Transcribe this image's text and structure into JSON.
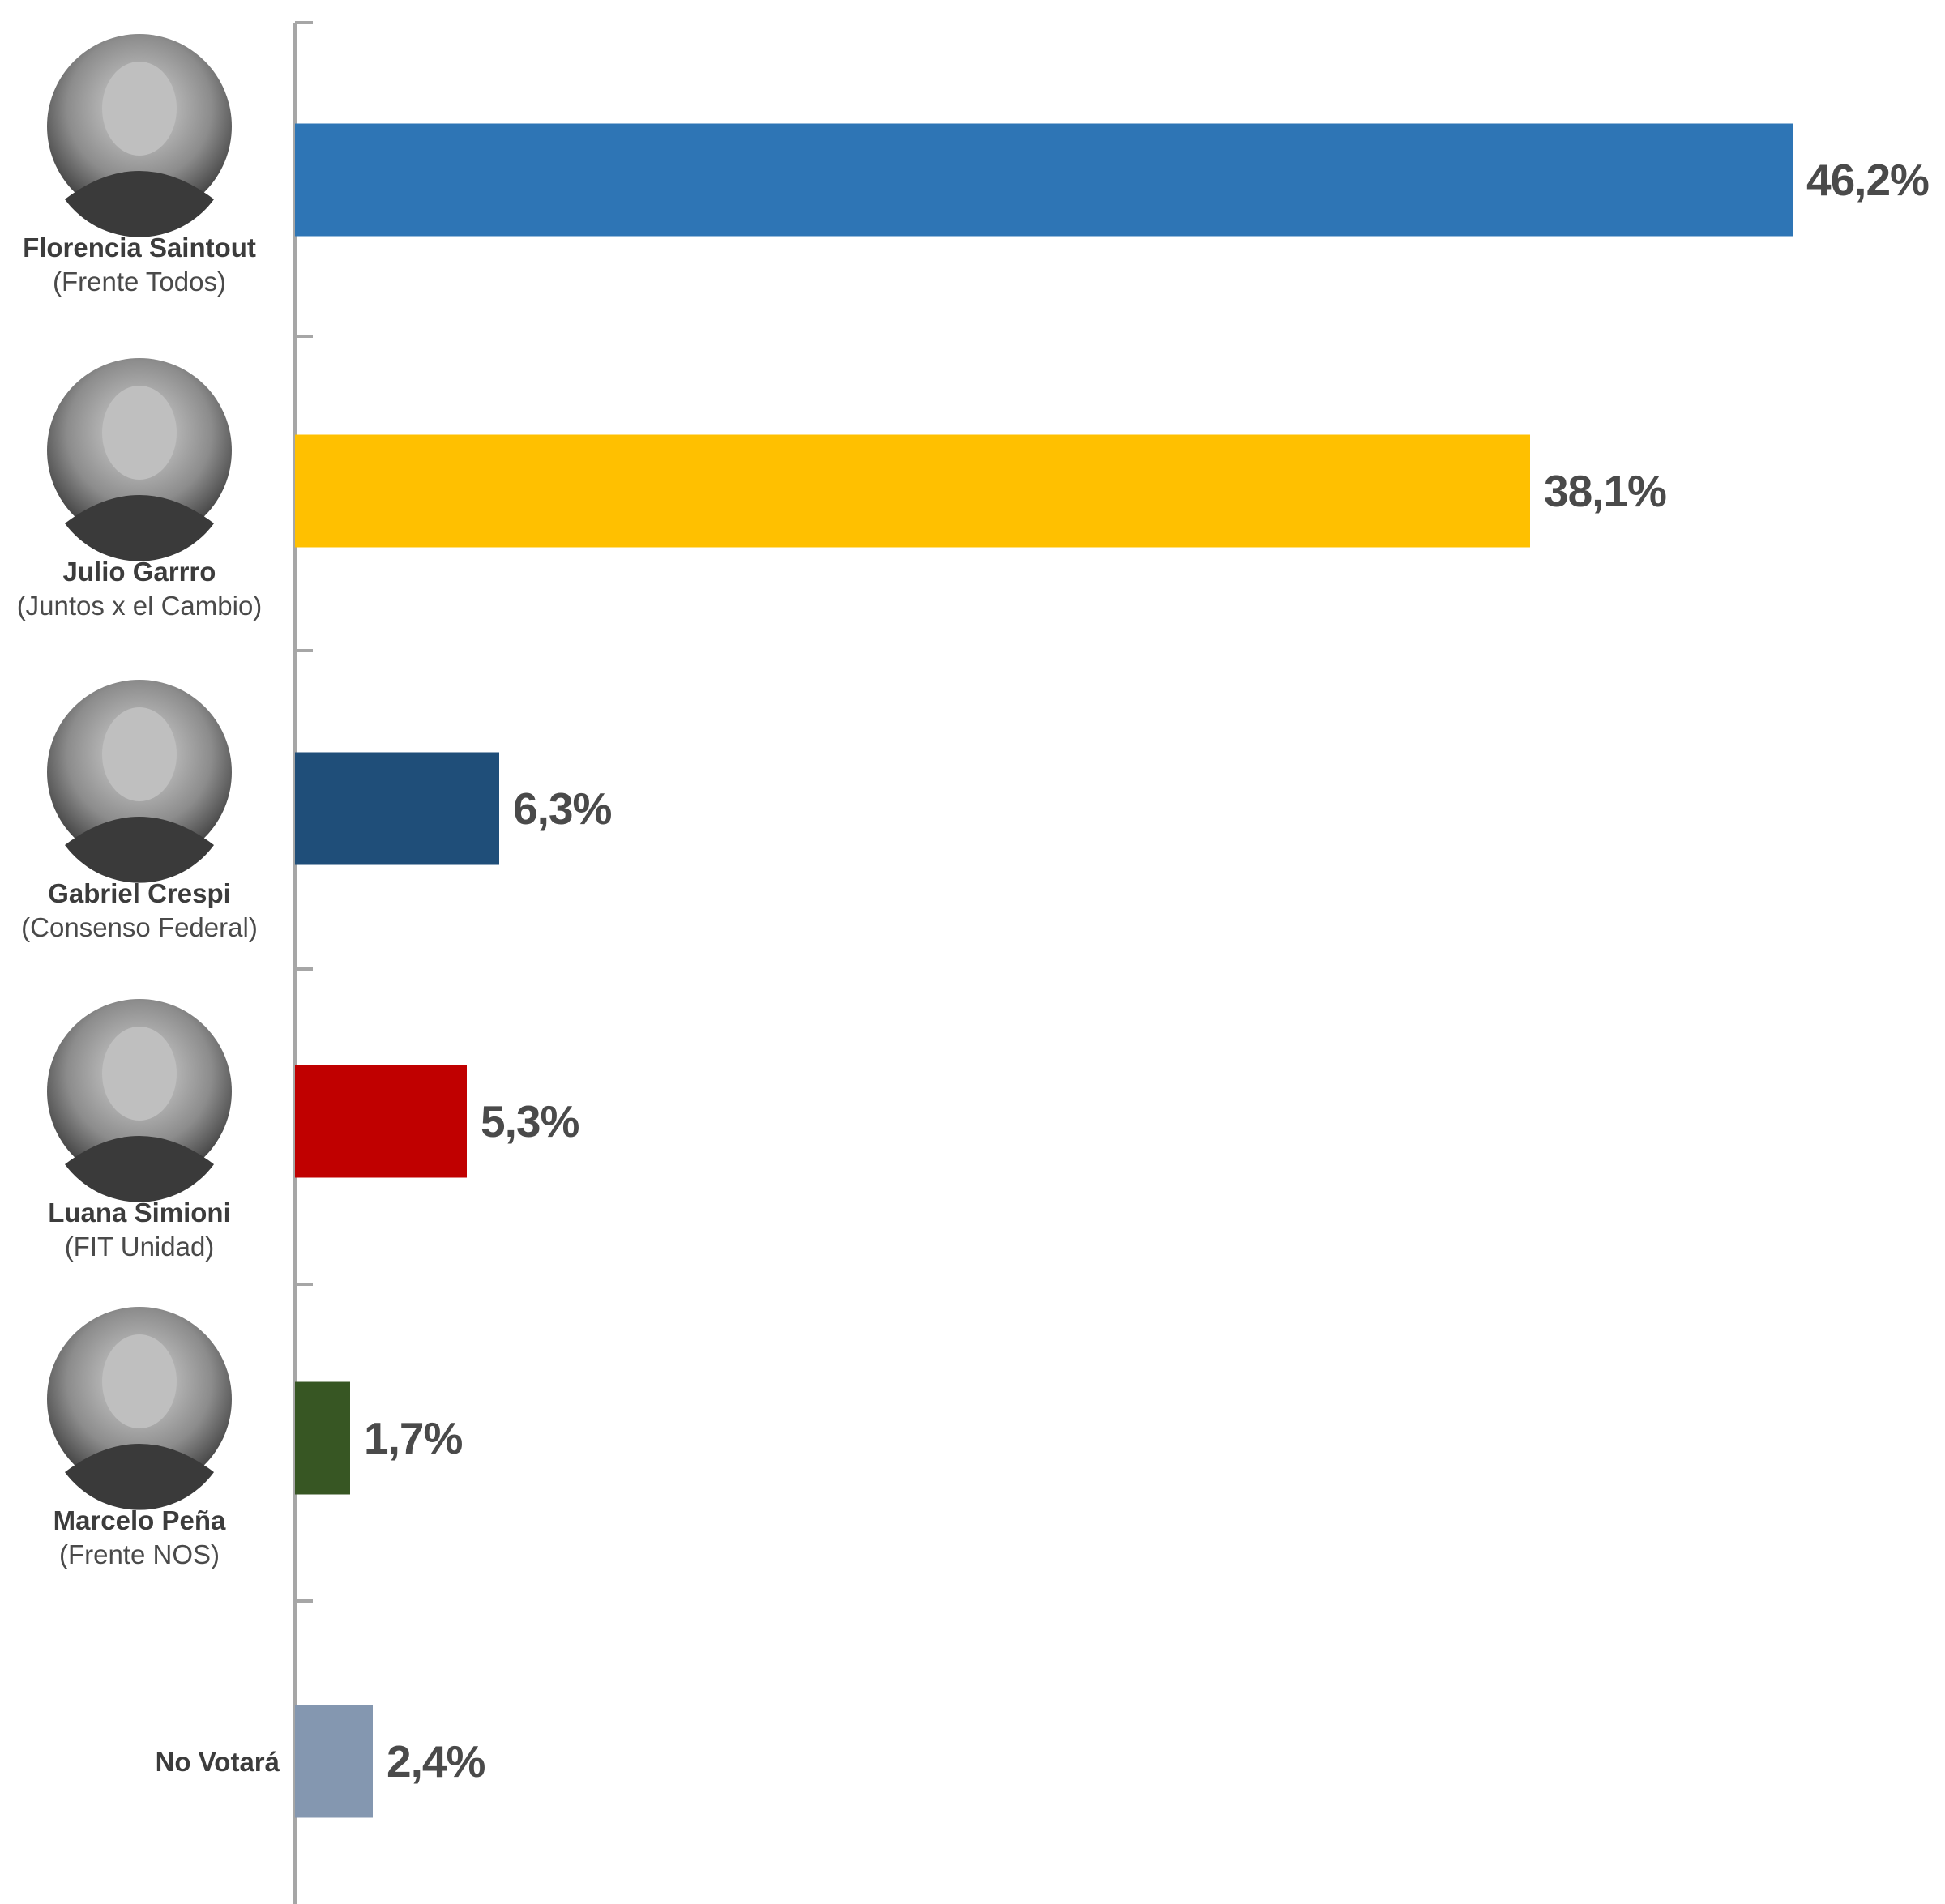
{
  "chart_data": {
    "type": "bar",
    "orientation": "horizontal",
    "categories": [
      "Florencia Saintout",
      "Julio Garrro",
      "Gabriel Crespi",
      "Luana Simioni",
      "Marcelo Peña",
      "No Votará"
    ],
    "parties": [
      "(Frente Todos)",
      "(Juntos x el Cambio)",
      "(Consenso Federal)",
      "(FIT Unidad)",
      "(Frente NOS)",
      ""
    ],
    "values": [
      46.2,
      38.1,
      6.3,
      5.3,
      1.7,
      2.4
    ],
    "value_labels": [
      "46,2%",
      "38,1%",
      "6,3%",
      "5,3%",
      "1,7%",
      "2,4%"
    ],
    "colors": [
      "#2e75b5",
      "#ffc000",
      "#1f4e79",
      "#c00000",
      "#375623",
      "#8497b0"
    ],
    "photos": [
      true,
      true,
      true,
      true,
      true,
      false
    ],
    "title": "",
    "xlabel": "",
    "ylabel": "",
    "grid": false,
    "legend": "none"
  }
}
